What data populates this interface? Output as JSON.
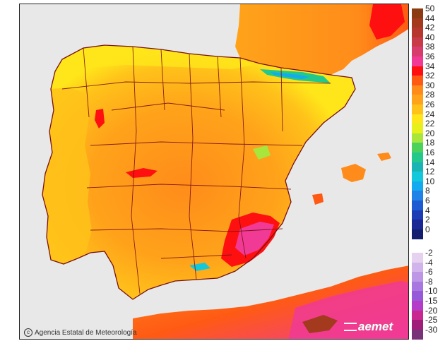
{
  "map": {
    "background_color": "#e8e8e8",
    "sea_color": "#e8e8e8",
    "border_color": "#7a1010"
  },
  "legend": {
    "entries": [
      {
        "label": "50",
        "color": "#8b3a12"
      },
      {
        "label": "44",
        "color": "#a33a1e"
      },
      {
        "label": "42",
        "color": "#b5372e"
      },
      {
        "label": "40",
        "color": "#c83a48"
      },
      {
        "label": "38",
        "color": "#d83c6c"
      },
      {
        "label": "36",
        "color": "#f03a96"
      },
      {
        "label": "34",
        "color": "#ff1010"
      },
      {
        "label": "32",
        "color": "#ff5a14"
      },
      {
        "label": "30",
        "color": "#ff8c1a"
      },
      {
        "label": "28",
        "color": "#ffa31a"
      },
      {
        "label": "26",
        "color": "#ffc21a"
      },
      {
        "label": "24",
        "color": "#ffe61a"
      },
      {
        "label": "22",
        "color": "#e6f01a"
      },
      {
        "label": "20",
        "color": "#a8e63c"
      },
      {
        "label": "18",
        "color": "#4cd25a"
      },
      {
        "label": "16",
        "color": "#22c88c"
      },
      {
        "label": "14",
        "color": "#1ab4b4"
      },
      {
        "label": "12",
        "color": "#14c8dc"
      },
      {
        "label": "10",
        "color": "#14aaf0"
      },
      {
        "label": "8",
        "color": "#1e82e6"
      },
      {
        "label": "6",
        "color": "#1e5ad2"
      },
      {
        "label": "4",
        "color": "#1e3cb4"
      },
      {
        "label": "2",
        "color": "#1a2896"
      },
      {
        "label": "0",
        "color": "#141e6e"
      }
    ],
    "negative_entries": [
      {
        "label": "-2",
        "color": "#e6d2f0"
      },
      {
        "label": "-4",
        "color": "#d2b4ec"
      },
      {
        "label": "-6",
        "color": "#be96e6"
      },
      {
        "label": "-8",
        "color": "#a878e0"
      },
      {
        "label": "-10",
        "color": "#965ad8"
      },
      {
        "label": "-15",
        "color": "#b43cc8"
      },
      {
        "label": "-20",
        "color": "#c82890"
      },
      {
        "label": "-25",
        "color": "#a01e78"
      },
      {
        "label": "-30",
        "color": "#783278"
      }
    ]
  },
  "credit": {
    "text": "Agencia Estatal de Meteorología",
    "icon": "copyright-icon"
  },
  "logo": {
    "text": "aemet",
    "icon": "aemet-logo-icon"
  }
}
